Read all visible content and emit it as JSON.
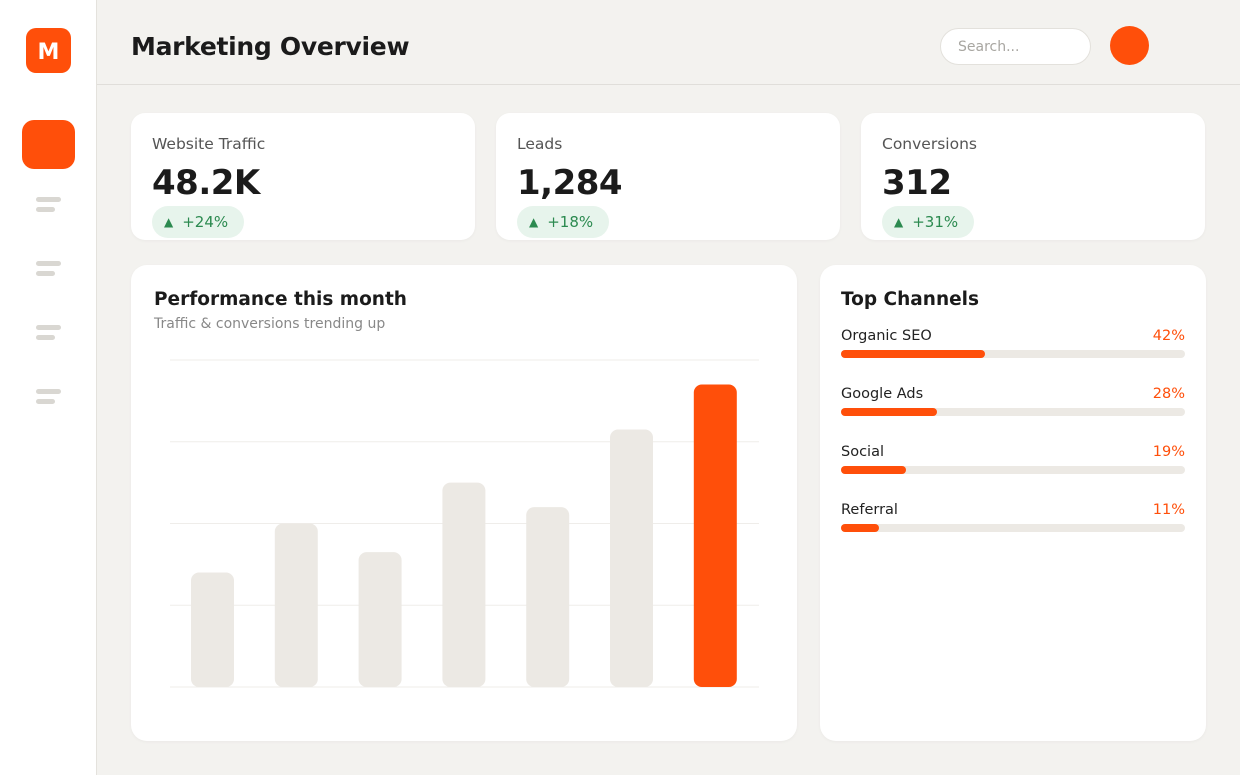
{
  "brand": {
    "logo_letter": "M",
    "accent": "#ff4f0a"
  },
  "sidebar": {
    "items": [
      {
        "icon": "active-nav-icon",
        "active": true
      },
      {
        "icon": "menu-lines-icon",
        "active": false
      },
      {
        "icon": "menu-lines-icon",
        "active": false
      },
      {
        "icon": "menu-lines-icon",
        "active": false
      },
      {
        "icon": "menu-lines-icon",
        "active": false
      }
    ]
  },
  "header": {
    "title": "Marketing Overview",
    "search_placeholder": "Search...",
    "avatar_color": "#ff4f0a"
  },
  "kpis": [
    {
      "label": "Website Traffic",
      "value": "48.2K",
      "delta": "+24%",
      "trend": "up"
    },
    {
      "label": "Leads",
      "value": "1,284",
      "delta": "+18%",
      "trend": "up"
    },
    {
      "label": "Conversions",
      "value": "312",
      "delta": "+31%",
      "trend": "up"
    }
  ],
  "performance": {
    "title": "Performance this month",
    "subtitle": "Traffic & conversions trending up"
  },
  "chart_data": {
    "type": "bar",
    "values": [
      28,
      40,
      33,
      50,
      44,
      63,
      74
    ],
    "ylim": [
      0,
      80
    ],
    "highlight_index": 6,
    "grid": true,
    "bar_color": "#ece9e4",
    "highlight_color": "#ff4f0a"
  },
  "channels": {
    "title": "Top Channels",
    "items": [
      {
        "name": "Organic SEO",
        "pct_label": "42%",
        "value": 42
      },
      {
        "name": "Google Ads",
        "pct_label": "28%",
        "value": 28
      },
      {
        "name": "Social",
        "pct_label": "19%",
        "value": 19
      },
      {
        "name": "Referral",
        "pct_label": "11%",
        "value": 11
      }
    ]
  }
}
